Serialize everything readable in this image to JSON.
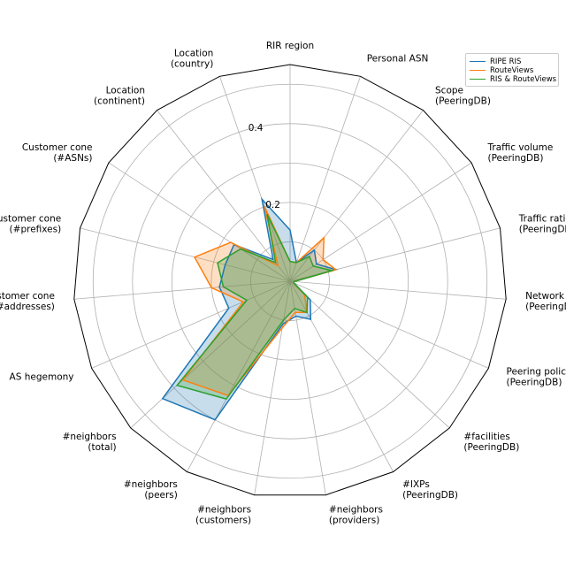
{
  "chart_data": {
    "type": "radar",
    "categories": [
      "RIR region",
      "Personal ASN",
      "Scope\n(PeeringDB)",
      "Traffic volume\n(PeeringDB)",
      "Traffic ratio\n(PeeringDB)",
      "Network type\n(PeeringDB)",
      "Peering policy\n(PeeringDB)",
      "#facilities\n(PeeringDB)",
      "#IXPs\n(PeeringDB)",
      "#neighbors\n(providers)",
      "#neighbors\n(customers)",
      "#neighbors\n(peers)",
      "#neighbors\n(total)",
      "AS hegemony",
      "Customer cone\n(#addresses)",
      "Customer cone\n(#prefixes)",
      "Customer cone\n(#ASNs)",
      "Location\n(continent)",
      "Location\n(country)"
    ],
    "rticks": [
      0.2,
      0.4
    ],
    "rtick_labels": [
      "0.2",
      "0.4"
    ],
    "rmax": 0.55,
    "series": [
      {
        "name": "RIPE RIS",
        "color": "#1f77b4",
        "fill_opacity": 0.25,
        "values": [
          0.13,
          0.05,
          0.1,
          0.08,
          0.12,
          0.01,
          0.01,
          0.07,
          0.11,
          0.09,
          0.11,
          0.4,
          0.44,
          0.17,
          0.18,
          0.17,
          0.17,
          0.07,
          0.22
        ]
      },
      {
        "name": "RouteViews",
        "color": "#ff7f0e",
        "fill_opacity": 0.25,
        "values": [
          0.05,
          0.05,
          0.14,
          0.1,
          0.12,
          0.01,
          0.01,
          0.05,
          0.09,
          0.08,
          0.12,
          0.33,
          0.37,
          0.13,
          0.2,
          0.25,
          0.18,
          0.05,
          0.2
        ]
      },
      {
        "name": "RIS & RouteViews",
        "color": "#2ca02c",
        "fill_opacity": 0.25,
        "values": [
          0.05,
          0.05,
          0.08,
          0.07,
          0.11,
          0.01,
          0.01,
          0.06,
          0.09,
          0.07,
          0.1,
          0.34,
          0.39,
          0.12,
          0.17,
          0.19,
          0.15,
          0.06,
          0.18
        ]
      }
    ],
    "legend_position": "top-right",
    "grid": true
  }
}
